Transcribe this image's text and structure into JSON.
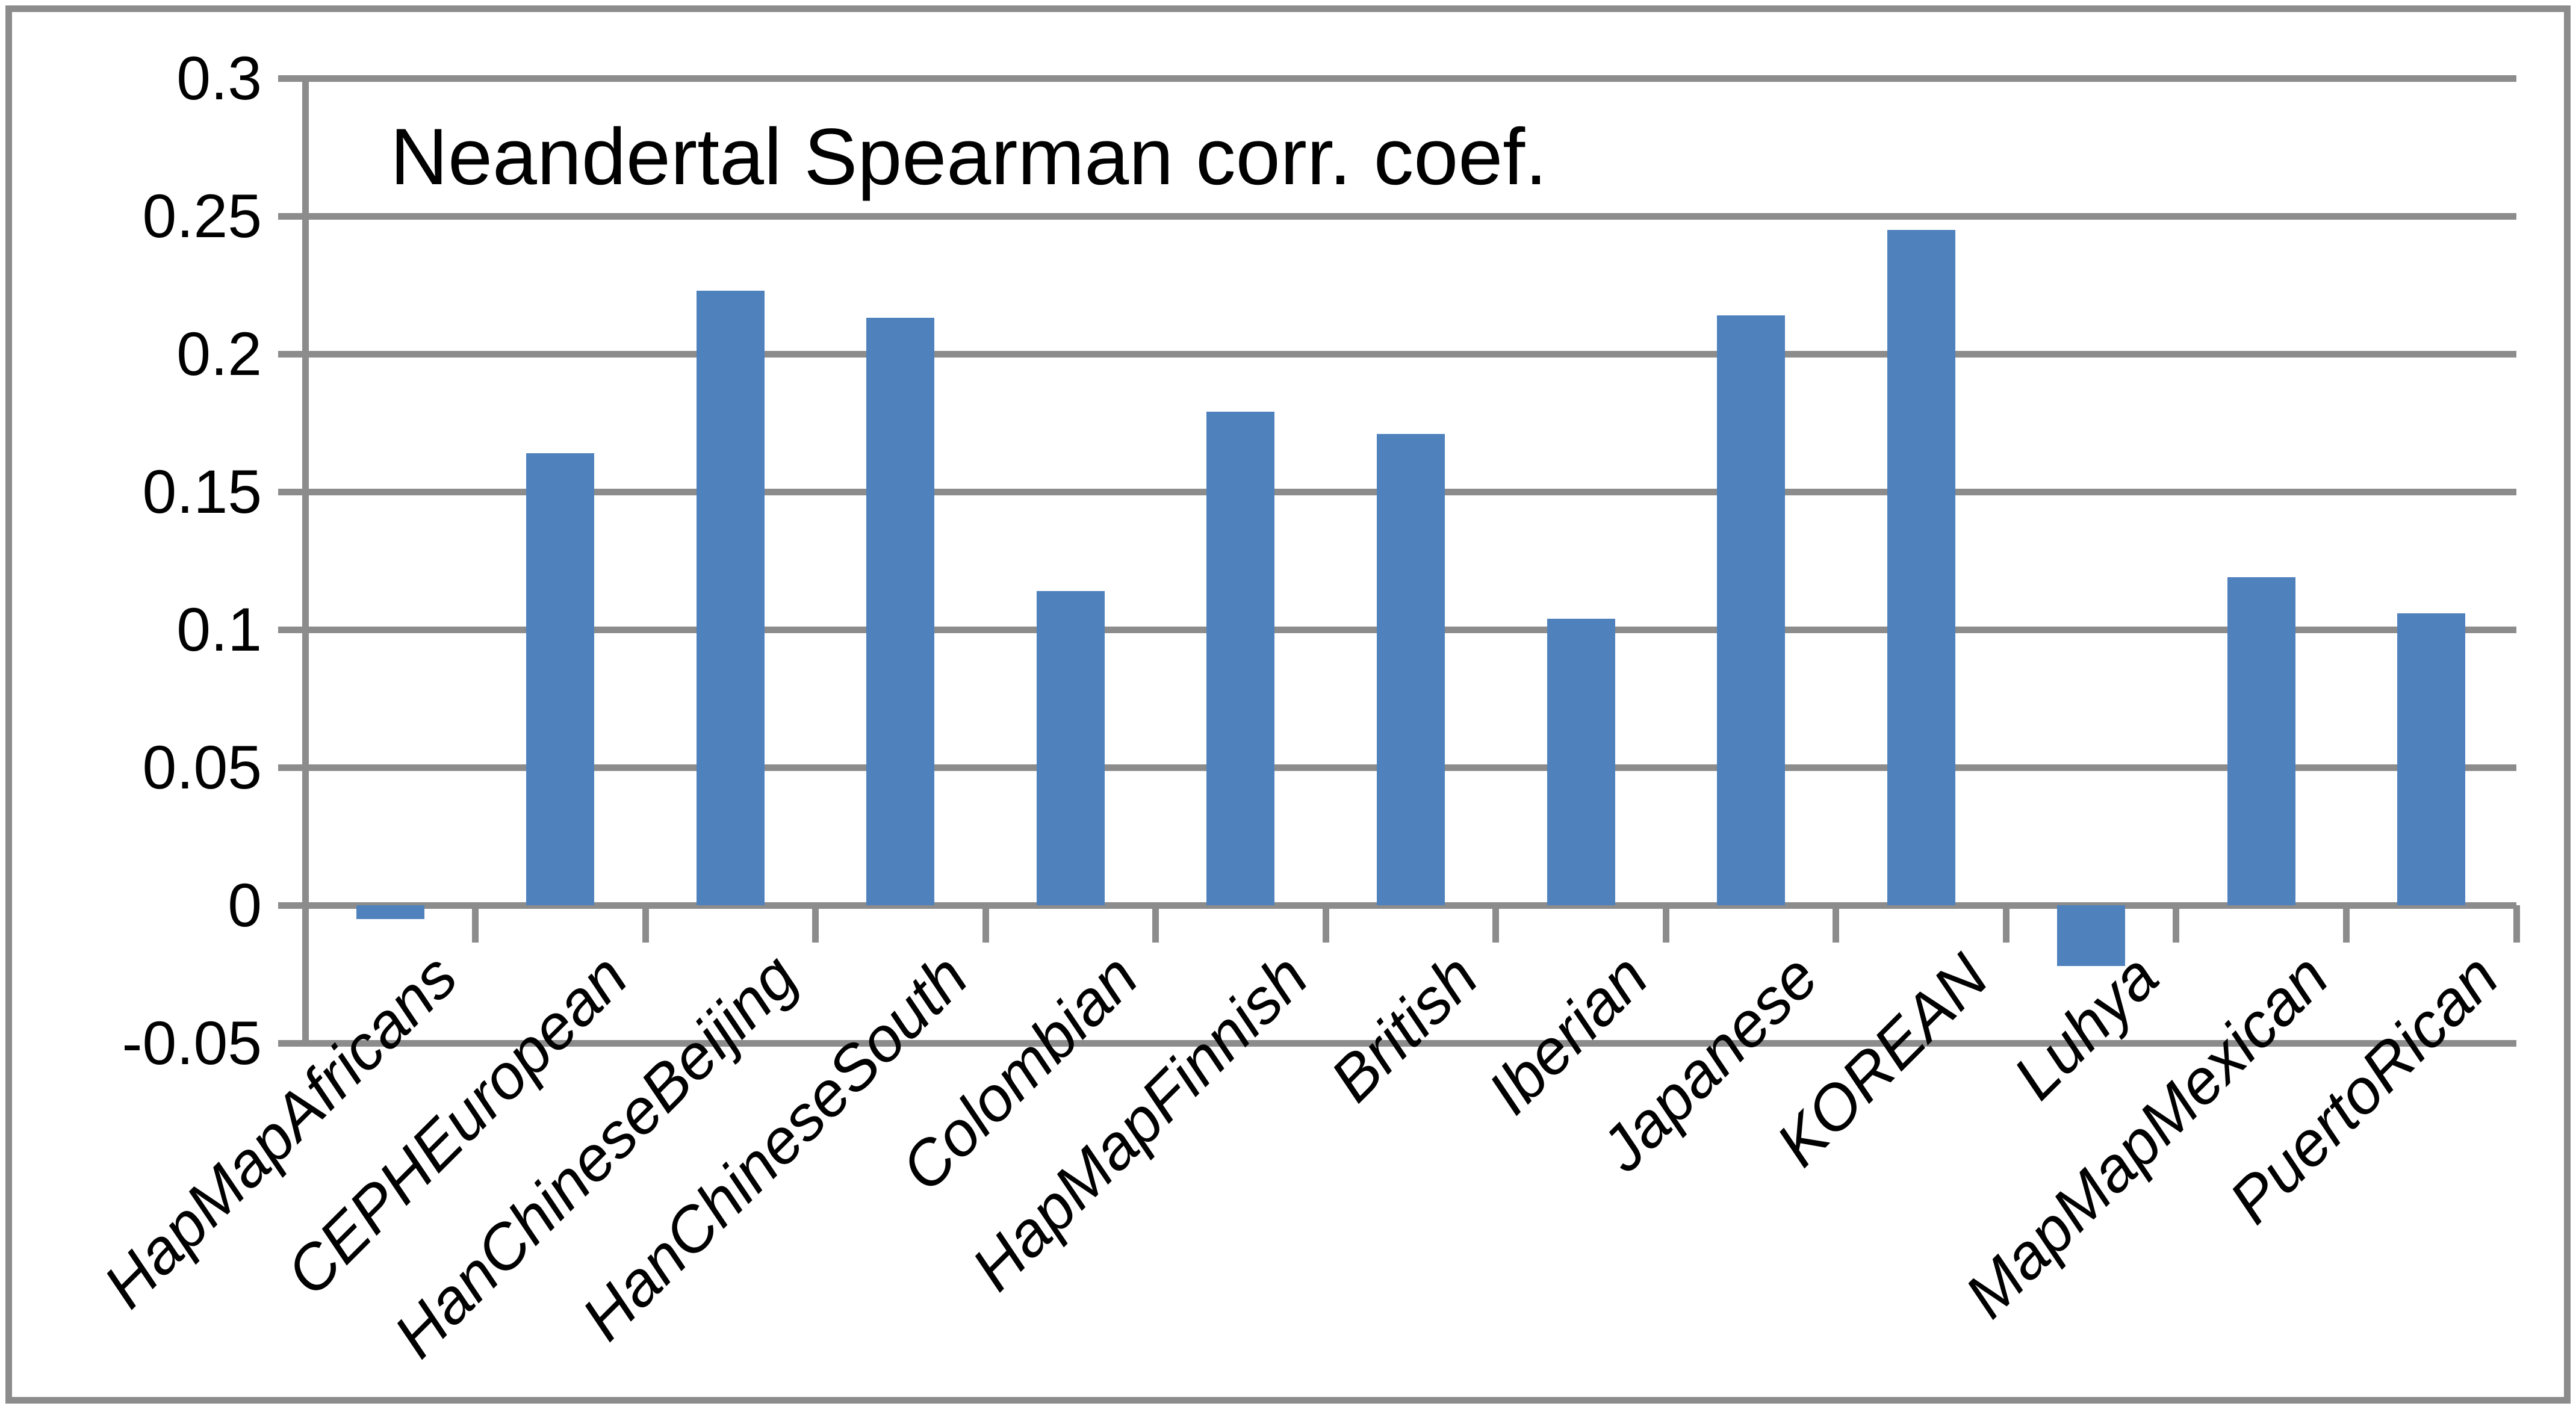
{
  "chart_data": {
    "type": "bar",
    "title": "Neandertal Spearman corr. coef.",
    "categories": [
      "HapMapAfricans",
      "CEPHEuropean",
      "HanChineseBeijing",
      "HanChineseSouth",
      "Colombian",
      "HapMapFinnish",
      "British",
      "Iberian",
      "Japanese",
      "KOREAN",
      "Luhya",
      "MapMapMexican",
      "PuertoRican"
    ],
    "values": [
      -0.005,
      0.164,
      0.223,
      0.213,
      0.114,
      0.179,
      0.171,
      0.104,
      0.214,
      0.245,
      -0.022,
      0.119,
      0.106
    ],
    "xlabel": "",
    "ylabel": "",
    "ylim": [
      -0.05,
      0.3
    ],
    "y_tick_interval": 0.05,
    "y_tick_labels": [
      "0.3",
      "0.25",
      "0.2",
      "0.15",
      "0.1",
      "0.05",
      "0",
      "-0.05"
    ],
    "y_tick_values": [
      0.3,
      0.25,
      0.2,
      0.15,
      0.1,
      0.05,
      0,
      -0.05
    ],
    "grid": true,
    "legend": false,
    "bar_color": "#4F81BD",
    "grid_color": "#8C8C8C",
    "border_color": "#8C8C8C",
    "background_color": "#FFFFFF",
    "text_color": "#000000"
  }
}
